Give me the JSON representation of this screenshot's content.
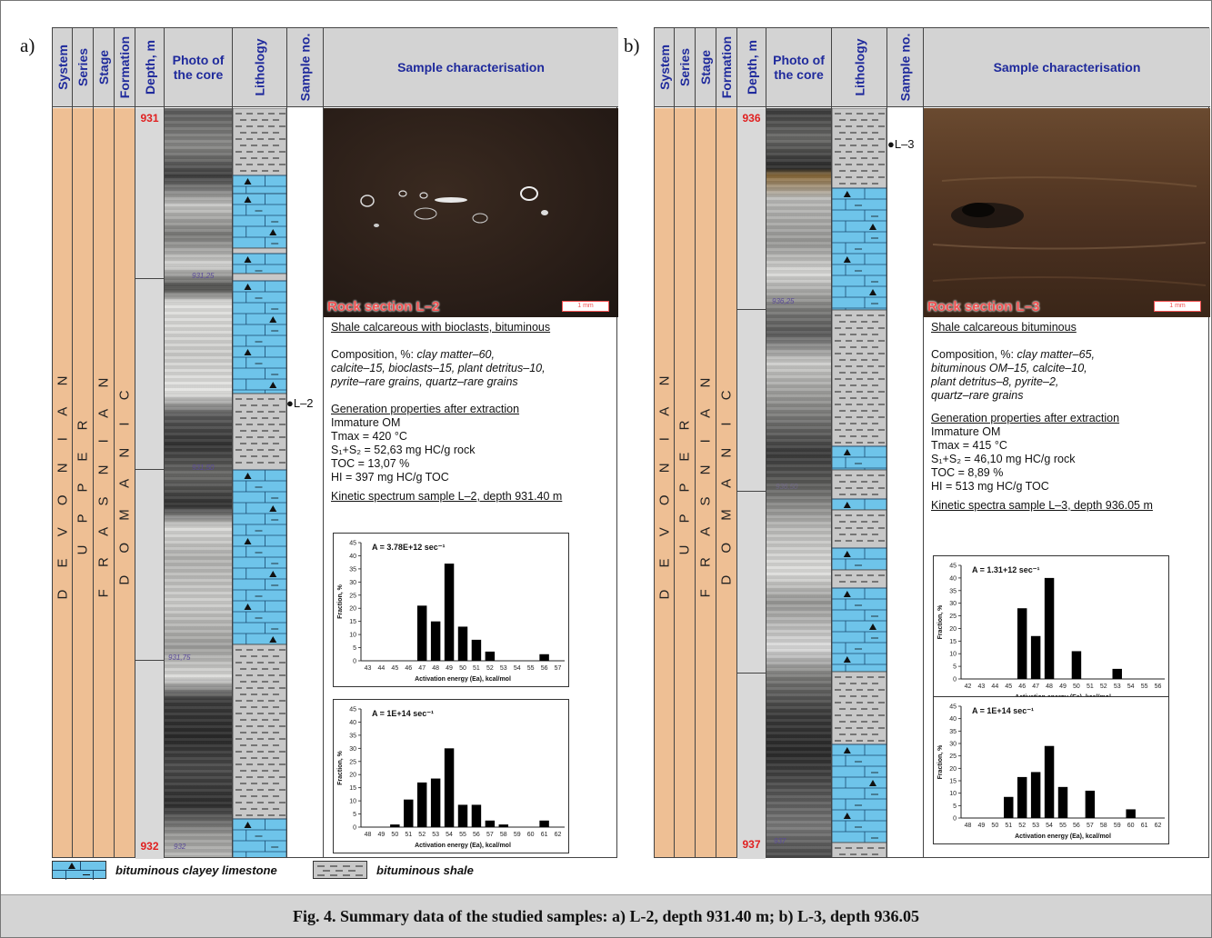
{
  "panels": {
    "a": {
      "label": "a)",
      "headers": {
        "system": "System",
        "series": "Series",
        "stage": "Stage",
        "formation": "Formation",
        "depth": "Depth, m",
        "photo": "Photo of the core",
        "lithology": "Lithology",
        "sample": "Sample no.",
        "characterisation": "Sample characterisation"
      },
      "strat": {
        "system": "D E V O N I A N",
        "series": "U P P E R",
        "stage": "F R A S N I A N",
        "formation": "D O M A N I C"
      },
      "depth_top": "931",
      "depth_bottom": "932",
      "core_marks": [
        "931,25",
        "931,50",
        "931,75",
        "932"
      ],
      "sample_no": "●L–2",
      "section_label": "Rock section L–2",
      "scale": "1 mm",
      "title": "Shale calcareous with bioclasts, bituminous",
      "composition_label": "Composition, %:",
      "composition_lines": [
        "clay matter–60,",
        "calcite–15, bioclasts–15, plant detritus–10,",
        "pyrite–rare grains, quartz–rare grains"
      ],
      "gen_title": "Generation properties after extraction",
      "gen_lines": [
        "Immature OM",
        "Tmax = 420 °C",
        "S₁+S₂ = 52,63 mg HC/g rock",
        "TOC = 13,07 %",
        "HI = 397 mg HC/g TOC"
      ],
      "kinetic_title": "Kinetic spectrum sample L–2, depth 931.40 m"
    },
    "b": {
      "label": "b)",
      "headers": {
        "system": "System",
        "series": "Series",
        "stage": "Stage",
        "formation": "Formation",
        "depth": "Depth, m",
        "photo": "Photo of the core",
        "lithology": "Lithology",
        "sample": "Sample no.",
        "characterisation": "Sample characterisation"
      },
      "strat": {
        "system": "D E V O N I A N",
        "series": "U P P E R",
        "stage": "F R A S N I A N",
        "formation": "D O M A N I C"
      },
      "depth_top": "936",
      "depth_bottom": "937",
      "core_marks": [
        "936,25",
        "936,50",
        "937"
      ],
      "sample_no": "●L–3",
      "section_label": "Rock section L–3",
      "scale": "1 mm",
      "title": "Shale calcareous bituminous",
      "composition_label": "Composition, %:",
      "composition_lines": [
        "clay matter–65,",
        "bituminous OM–15, calcite–10,",
        "plant detritus–8, pyrite–2,",
        "quartz–rare grains"
      ],
      "gen_title": "Generation properties after extraction",
      "gen_lines": [
        "Immature OM",
        "Tmax = 415 °C",
        "S₁+S₂ = 46,10 mg HC/g rock",
        "TOC = 8,89 %",
        "HI = 513 mg HC/g TOC"
      ],
      "kinetic_title": "Kinetic spectra sample L–3, depth 936.05 m"
    }
  },
  "chart_data": [
    {
      "type": "bar",
      "panel": "a",
      "title": "A = 3.78E+12 sec⁻¹",
      "xlabel": "Activation energy (Ea), kcal/mol",
      "ylabel": "Fraction, %",
      "categories": [
        "43",
        "44",
        "45",
        "46",
        "47",
        "48",
        "49",
        "50",
        "51",
        "52",
        "53",
        "54",
        "55",
        "56",
        "57"
      ],
      "values": [
        0,
        0,
        0,
        0,
        21,
        15,
        37,
        13,
        8,
        3.5,
        0,
        0,
        0,
        2.5,
        0
      ],
      "ylim": [
        0,
        45
      ],
      "yticks": [
        "0",
        "5",
        "10",
        "15",
        "20",
        "25",
        "30",
        "35",
        "40",
        "45"
      ]
    },
    {
      "type": "bar",
      "panel": "a",
      "title": "A = 1E+14 sec⁻¹",
      "xlabel": "Activation energy (Ea), kcal/mol",
      "ylabel": "Fraction, %",
      "categories": [
        "48",
        "49",
        "50",
        "51",
        "52",
        "53",
        "54",
        "55",
        "56",
        "57",
        "58",
        "59",
        "60",
        "61",
        "62"
      ],
      "values": [
        0,
        0,
        1,
        10.5,
        17,
        18.5,
        30,
        8.5,
        8.5,
        2.5,
        1,
        0,
        0,
        2.5,
        0
      ],
      "ylim": [
        0,
        45
      ],
      "yticks": [
        "0",
        "5",
        "10",
        "15",
        "20",
        "25",
        "30",
        "35",
        "40",
        "45"
      ]
    },
    {
      "type": "bar",
      "panel": "b",
      "title": "A = 1.31+12 sec⁻¹",
      "xlabel": "Activation energy (Ea), kcal/mol",
      "ylabel": "Fraction, %",
      "categories": [
        "42",
        "43",
        "44",
        "45",
        "46",
        "47",
        "48",
        "49",
        "50",
        "51",
        "52",
        "53",
        "54",
        "55",
        "56"
      ],
      "values": [
        0,
        0,
        0,
        0,
        28,
        17,
        40,
        0,
        11,
        0,
        0,
        4,
        0,
        0,
        0
      ],
      "ylim": [
        0,
        45
      ],
      "yticks": [
        "0",
        "5",
        "10",
        "15",
        "20",
        "25",
        "30",
        "35",
        "40",
        "45"
      ]
    },
    {
      "type": "bar",
      "panel": "b",
      "title": "A = 1E+14 sec⁻¹",
      "xlabel": "Activation energy (Ea), kcal/mol",
      "ylabel": "Fraction, %",
      "categories": [
        "48",
        "49",
        "50",
        "51",
        "52",
        "53",
        "54",
        "55",
        "56",
        "57",
        "58",
        "59",
        "60",
        "61",
        "62"
      ],
      "values": [
        0,
        0,
        0,
        8.5,
        16.5,
        18.5,
        29,
        12.5,
        0,
        11,
        0,
        0,
        3.5,
        0,
        0
      ],
      "ylim": [
        0,
        45
      ],
      "yticks": [
        "0",
        "5",
        "10",
        "15",
        "20",
        "25",
        "30",
        "35",
        "40",
        "45"
      ]
    }
  ],
  "legend": {
    "limestone": "bituminous clayey limestone",
    "shale": "bituminous shale"
  },
  "caption": "Fig. 4. Summary data of the studied samples: a) L-2, depth 931.40 m; b) L-3, depth 936.05"
}
